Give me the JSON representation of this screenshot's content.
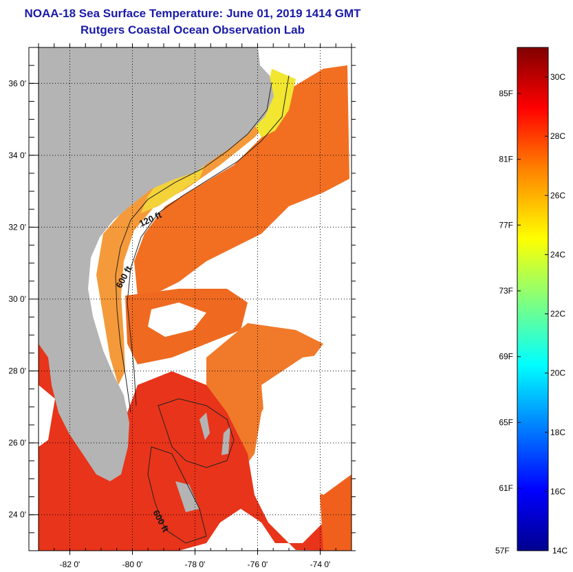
{
  "title": "NOAA-18 Sea Surface Temperature:  June 01, 2019 1414 GMT",
  "subtitle": "Rutgers Coastal Ocean Observation Lab",
  "map": {
    "lon_range": [
      -83,
      -73
    ],
    "lat_range": [
      23,
      37
    ],
    "lon_ticks": [
      {
        "value": -82,
        "label": "-82 0'"
      },
      {
        "value": -80,
        "label": "-80 0'"
      },
      {
        "value": -78,
        "label": "-78 0'"
      },
      {
        "value": -76,
        "label": "-76 0'"
      },
      {
        "value": -74,
        "label": "-74 0'"
      }
    ],
    "lat_ticks": [
      {
        "value": 24,
        "label": "24 0'"
      },
      {
        "value": 26,
        "label": "26 0'"
      },
      {
        "value": 28,
        "label": "28 0'"
      },
      {
        "value": 30,
        "label": "30 0'"
      },
      {
        "value": 32,
        "label": "32 0'"
      },
      {
        "value": 34,
        "label": "34 0'"
      },
      {
        "value": 36,
        "label": "36 0'"
      }
    ],
    "contour_labels": [
      "120 ft",
      "600 ft",
      "600 ft"
    ],
    "colors": {
      "land": "#b4b4b4",
      "no_data": "#ffffff",
      "grid": "#000000"
    }
  },
  "colorbar": {
    "range_c": [
      14,
      31
    ],
    "celsius_ticks": [
      {
        "value": 16,
        "label": "16C"
      },
      {
        "value": 18,
        "label": "18C"
      },
      {
        "value": 20,
        "label": "20C"
      },
      {
        "value": 22,
        "label": "22C"
      },
      {
        "value": 24,
        "label": "24C"
      },
      {
        "value": 26,
        "label": "26C"
      },
      {
        "value": 28,
        "label": "28C"
      },
      {
        "value": 30,
        "label": "30C"
      }
    ],
    "fahrenheit_ticks": [
      {
        "value": 61,
        "label": "61F"
      },
      {
        "value": 65,
        "label": "65F"
      },
      {
        "value": 69,
        "label": "69F"
      },
      {
        "value": 73,
        "label": "73F"
      },
      {
        "value": 77,
        "label": "77F"
      },
      {
        "value": 81,
        "label": "81F"
      },
      {
        "value": 85,
        "label": "85F"
      }
    ],
    "bottom_left_label": "57F",
    "bottom_right_label": "14C",
    "colormap": "jet",
    "gradient_colors": [
      "#00008f",
      "#0000ff",
      "#00ffff",
      "#ffff00",
      "#ff8000",
      "#ff0000",
      "#800000"
    ]
  }
}
